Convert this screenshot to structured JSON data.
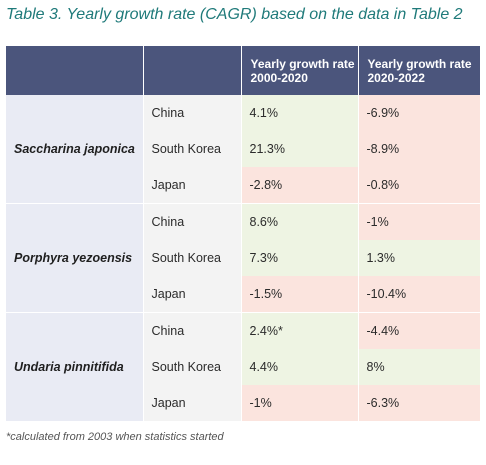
{
  "title": "Table 3. Yearly growth rate (CAGR) based on the data in Table 2",
  "table": {
    "headers": [
      "",
      "",
      "Yearly growth rate 2000-2020",
      "Yearly growth rate 2020-2022"
    ],
    "groups": [
      {
        "species": "Saccharina japonica",
        "rows": [
          {
            "country": "China",
            "rate_2000_2020": "4.1%",
            "rate_2020_2022": "-6.9%"
          },
          {
            "country": "South Korea",
            "rate_2000_2020": "21.3%",
            "rate_2020_2022": "-8.9%"
          },
          {
            "country": "Japan",
            "rate_2000_2020": "-2.8%",
            "rate_2020_2022": "-0.8%"
          }
        ]
      },
      {
        "species": "Porphyra yezoensis",
        "rows": [
          {
            "country": "China",
            "rate_2000_2020": "8.6%",
            "rate_2020_2022": "-1%"
          },
          {
            "country": "South Korea",
            "rate_2000_2020": "7.3%",
            "rate_2020_2022": "1.3%"
          },
          {
            "country": "Japan",
            "rate_2000_2020": "-1.5%",
            "rate_2020_2022": "-10.4%"
          }
        ]
      },
      {
        "species": "Undaria pinnitifida",
        "rows": [
          {
            "country": "China",
            "rate_2000_2020": "2.4%*",
            "rate_2020_2022": "-4.4%"
          },
          {
            "country": "South Korea",
            "rate_2000_2020": "4.4%",
            "rate_2020_2022": "8%"
          },
          {
            "country": "Japan",
            "rate_2000_2020": "-1%",
            "rate_2020_2022": "-6.3%"
          }
        ]
      }
    ]
  },
  "footnote": "*calculated from 2003 when statistics started",
  "colors": {
    "title": "#1f7a7a",
    "header_bg": "#4b557c",
    "species_bg": "#e9ebf4",
    "country_bg": "#f3f3f3",
    "positive_bg": "#eef4e3",
    "negative_bg": "#fbe4de"
  }
}
